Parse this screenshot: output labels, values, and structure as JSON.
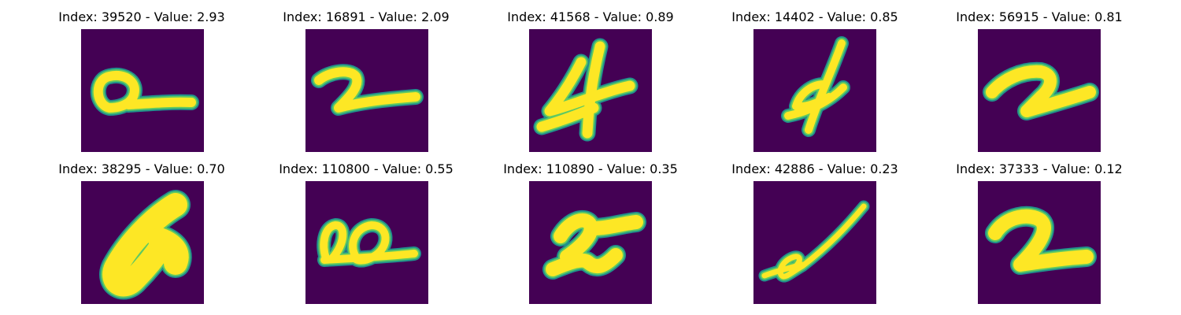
{
  "colors": {
    "background": "#440154",
    "stroke_edge": "#21918c",
    "stroke_mid": "#5ec962",
    "stroke_core": "#fde725"
  },
  "panels": [
    {
      "title": "Index: 39520 - Value: 2.93",
      "index": 39520,
      "value": 2.93,
      "glyph": "loop-tail"
    },
    {
      "title": "Index: 16891 - Value: 2.09",
      "index": 16891,
      "value": 2.09,
      "glyph": "digit-two-flat"
    },
    {
      "title": "Index: 41568 - Value: 0.89",
      "index": 41568,
      "value": 0.89,
      "glyph": "digit-four"
    },
    {
      "title": "Index: 14402 - Value: 0.85",
      "index": 14402,
      "value": 0.85,
      "glyph": "slanted-four"
    },
    {
      "title": "Index: 56915 - Value: 0.81",
      "index": 56915,
      "value": 0.81,
      "glyph": "digit-two-bold"
    },
    {
      "title": "Index: 38295 - Value: 0.70",
      "index": 38295,
      "value": 0.7,
      "glyph": "thick-six"
    },
    {
      "title": "Index: 110800 - Value: 0.55",
      "index": 110800,
      "value": 0.55,
      "glyph": "double-loop"
    },
    {
      "title": "Index: 110890 - Value: 0.35",
      "index": 110890,
      "value": 0.35,
      "glyph": "two-wave"
    },
    {
      "title": "Index: 42886 - Value: 0.23",
      "index": 42886,
      "value": 0.23,
      "glyph": "thin-curl"
    },
    {
      "title": "Index: 37333 - Value: 0.12",
      "index": 37333,
      "value": 0.12,
      "glyph": "digit-two-classic"
    }
  ]
}
